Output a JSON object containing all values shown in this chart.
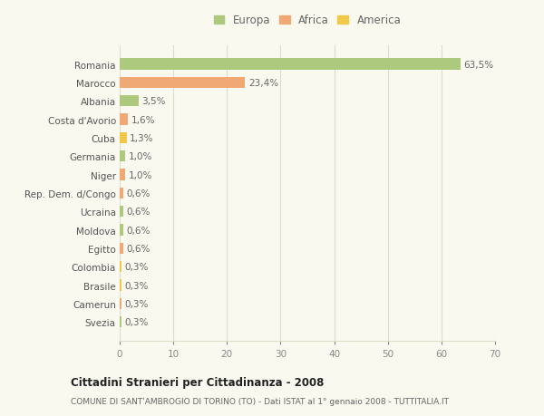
{
  "countries": [
    "Romania",
    "Marocco",
    "Albania",
    "Costa d'Avorio",
    "Cuba",
    "Germania",
    "Niger",
    "Rep. Dem. d/Congo",
    "Ucraina",
    "Moldova",
    "Egitto",
    "Colombia",
    "Brasile",
    "Camerun",
    "Svezia"
  ],
  "values": [
    63.5,
    23.4,
    3.5,
    1.6,
    1.3,
    1.0,
    1.0,
    0.6,
    0.6,
    0.6,
    0.6,
    0.3,
    0.3,
    0.3,
    0.3
  ],
  "labels": [
    "63,5%",
    "23,4%",
    "3,5%",
    "1,6%",
    "1,3%",
    "1,0%",
    "1,0%",
    "0,6%",
    "0,6%",
    "0,6%",
    "0,6%",
    "0,3%",
    "0,3%",
    "0,3%",
    "0,3%"
  ],
  "colors": [
    "#adc97e",
    "#f0a875",
    "#adc97e",
    "#f0a875",
    "#f0c84a",
    "#adc97e",
    "#f0a875",
    "#f0a875",
    "#adc97e",
    "#adc97e",
    "#f0a875",
    "#f0c84a",
    "#f0c84a",
    "#f0a875",
    "#adc97e"
  ],
  "legend": [
    {
      "label": "Europa",
      "color": "#adc97e"
    },
    {
      "label": "Africa",
      "color": "#f0a875"
    },
    {
      "label": "America",
      "color": "#f0c84a"
    }
  ],
  "xlim": [
    0,
    70
  ],
  "xticks": [
    0,
    10,
    20,
    30,
    40,
    50,
    60,
    70
  ],
  "title": "Cittadini Stranieri per Cittadinanza - 2008",
  "subtitle": "COMUNE DI SANT'AMBROGIO DI TORINO (TO) - Dati ISTAT al 1° gennaio 2008 - TUTTITALIA.IT",
  "background_color": "#f9f9f0",
  "grid_color": "#ddddcc"
}
